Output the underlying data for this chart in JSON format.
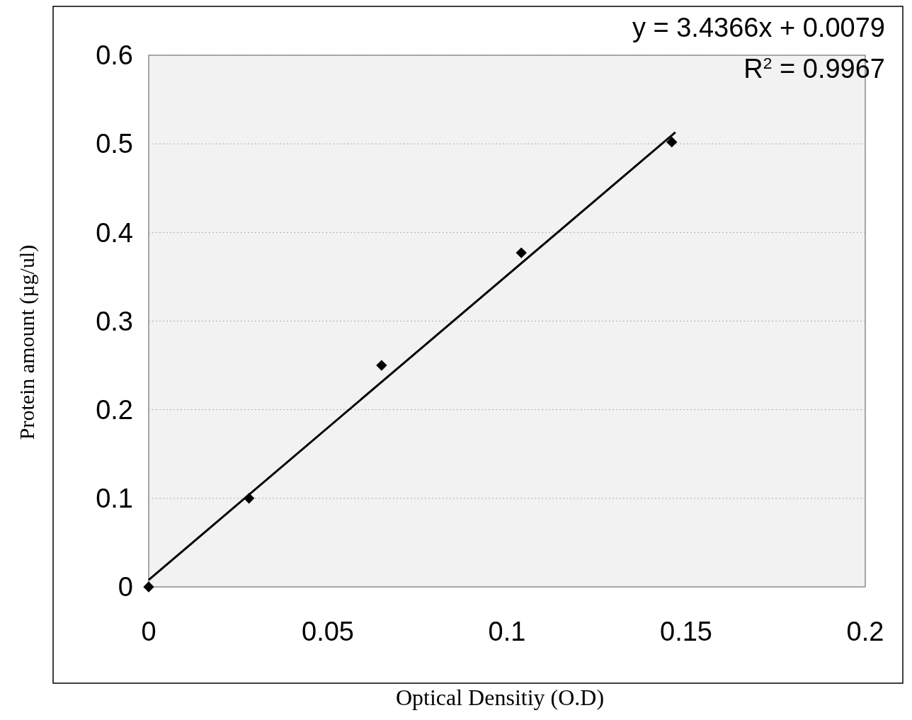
{
  "chart_data": {
    "type": "scatter",
    "xlabel": "Optical Densitiy (O.D)",
    "ylabel": "Protein amount (µg/ul)",
    "annotations": [
      "y = 3.4366x + 0.0079",
      "R$^{2}$ = 0.9967"
    ],
    "xlim": [
      0,
      0.2
    ],
    "xticks": [
      0,
      0.05,
      0.1,
      0.15,
      0.2
    ],
    "ylim": [
      0,
      0.6
    ],
    "yticks": [
      0,
      0.1,
      0.2,
      0.3,
      0.4,
      0.5,
      0.6
    ],
    "grid": "y",
    "series": [
      {
        "color": "#000000",
        "marker": "diamond",
        "x": [
          0,
          0.028,
          0.065,
          0.104,
          0.146
        ],
        "values": [
          0,
          0.1,
          0.25,
          0.377,
          0.502
        ]
      },
      {
        "type": "line",
        "color": "#000000",
        "line_style": "solid",
        "x": [
          0,
          0.147
        ],
        "values": [
          0.0079,
          0.513
        ]
      }
    ]
  }
}
